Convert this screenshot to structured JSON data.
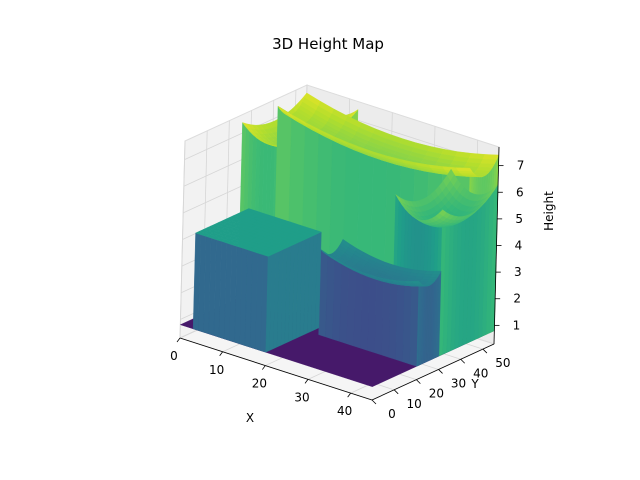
{
  "chart_data": {
    "type": "surface3d",
    "title": "3D Height Map",
    "xlabel": "X",
    "ylabel": "Y",
    "zlabel": "Height",
    "xlim": [
      0,
      45
    ],
    "ylim": [
      0,
      55
    ],
    "zlim": [
      0.3,
      7.7
    ],
    "x_ticks": [
      0,
      10,
      20,
      30,
      40
    ],
    "y_ticks": [
      0,
      10,
      20,
      30,
      40,
      50
    ],
    "z_ticks": [
      1,
      2,
      3,
      4,
      5,
      6,
      7
    ],
    "x_tick_labels": [
      "0",
      "10",
      "20",
      "30",
      "40"
    ],
    "y_tick_labels": [
      "0",
      "10",
      "20",
      "30",
      "40",
      "50"
    ],
    "z_tick_labels": [
      "1",
      "2",
      "3",
      "4",
      "5",
      "6",
      "7"
    ],
    "grid": true,
    "colormap": "viridis",
    "structures": [
      {
        "name": "",
        "type": "flat",
        "x": [
          0,
          45
        ],
        "y": [
          0,
          55
        ],
        "height": 0.8
      },
      {
        "name": "",
        "type": "curved-roof",
        "x": [
          0,
          12
        ],
        "y": [
          26,
          55
        ],
        "height": 6.4,
        "peak": 7.4
      },
      {
        "name": "",
        "type": "curved-roof",
        "x": [
          0,
          45
        ],
        "y": [
          42,
          55
        ],
        "height": 6.3,
        "peak": 7.4
      },
      {
        "name": "",
        "type": "box",
        "x": [
          3,
          20
        ],
        "y": [
          0,
          24
        ],
        "height": 4.4
      },
      {
        "name": "",
        "type": "curved-roof",
        "x": [
          22,
          45
        ],
        "y": [
          20,
          30
        ],
        "height": 3.3,
        "peak": 4.0
      },
      {
        "name": "",
        "type": "curved-roof",
        "x": [
          34,
          45
        ],
        "y": [
          30,
          55
        ],
        "height": 5.0,
        "peak": 6.3
      }
    ]
  }
}
